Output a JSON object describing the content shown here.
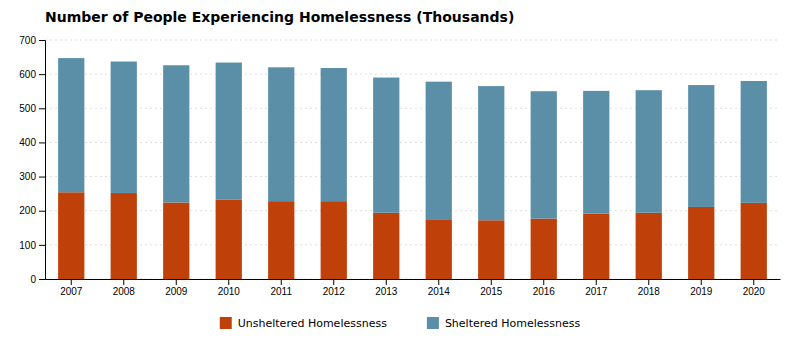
{
  "chart_data": {
    "type": "bar",
    "stacked": true,
    "title": "Number of People Experiencing Homelessness (Thousands)",
    "categories": [
      "2007",
      "2008",
      "2009",
      "2010",
      "2011",
      "2012",
      "2013",
      "2014",
      "2015",
      "2016",
      "2017",
      "2018",
      "2019",
      "2020"
    ],
    "series": [
      {
        "name": "Unsheltered Homelessness",
        "color": "#C0400A",
        "values": [
          254,
          252,
          224,
          232,
          228,
          228,
          194,
          175,
          172,
          177,
          192,
          194,
          211,
          223
        ]
      },
      {
        "name": "Sheltered Homelessness",
        "color": "#5B8FA8",
        "values": [
          393,
          385,
          402,
          402,
          392,
          390,
          396,
          403,
          393,
          373,
          359,
          359,
          357,
          357
        ]
      }
    ],
    "ylim": [
      0,
      700
    ],
    "yticks": [
      0,
      100,
      200,
      300,
      400,
      500,
      600,
      700
    ],
    "grid": true,
    "legend": "bottom"
  }
}
